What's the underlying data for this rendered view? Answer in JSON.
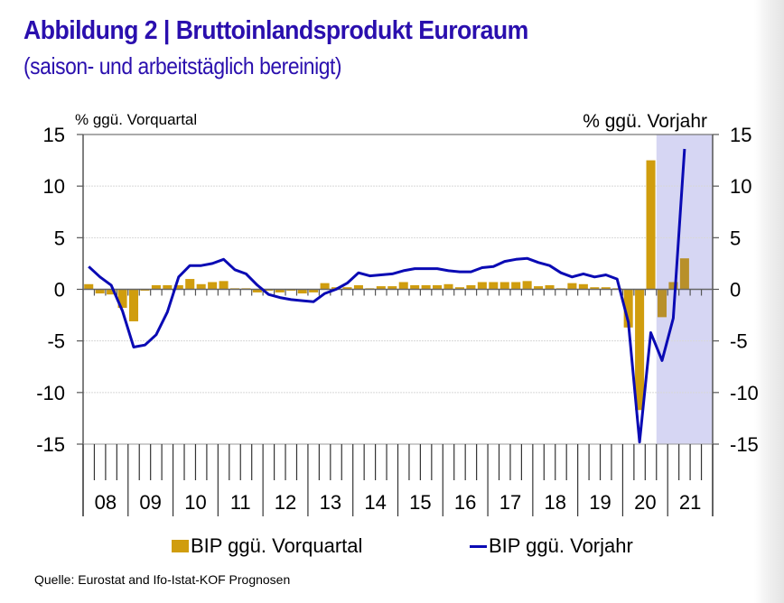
{
  "header": {
    "title": "Abbildung 2 | Bruttoinlandsprodukt Euroraum",
    "subtitle": "(saison- und arbeitstäglich bereinigt)"
  },
  "colors": {
    "title": "#2a0fae",
    "bars": "#d09d0e",
    "line": "#0a0ab4",
    "forecast_shade": "#d6d6f3"
  },
  "source": "Quelle: Eurostat and Ifo-Istat-KOF Prognosen",
  "chart_data": {
    "type": "bar+line",
    "title": "Bruttoinlandsprodukt Euroraum",
    "ylabel_left": "% ggü. Vorquartal",
    "ylabel_right": "% ggü. Vorjahr",
    "ylim_left": [
      -15,
      15
    ],
    "ylim_right": [
      -15,
      15
    ],
    "yticks": [
      15,
      10,
      5,
      0,
      -5,
      -10,
      -15
    ],
    "ytick_labels": [
      "15",
      "10",
      "5",
      "0",
      "-5",
      "-10",
      "-15"
    ],
    "grid": true,
    "x_years": [
      "08",
      "09",
      "10",
      "11",
      "12",
      "13",
      "14",
      "15",
      "16",
      "17",
      "18",
      "19",
      "20",
      "21"
    ],
    "x_quarters_per_year": 4,
    "forecast_start": "2020Q4",
    "legend": [
      "BIP ggü. Vorquartal",
      "BIP ggü. Vorjahr"
    ],
    "legend_position": "bottom",
    "series": [
      {
        "name": "BIP ggü. Vorquartal",
        "kind": "bar",
        "axis": "left",
        "values": [
          0.5,
          -0.4,
          -0.5,
          -1.8,
          -3.1,
          -0.1,
          0.4,
          0.4,
          0.4,
          1.0,
          0.5,
          0.7,
          0.8,
          0.1,
          0.1,
          -0.3,
          -0.1,
          -0.3,
          -0.1,
          -0.4,
          -0.3,
          0.6,
          0.2,
          0.2,
          0.4,
          0.1,
          0.3,
          0.3,
          0.7,
          0.4,
          0.4,
          0.4,
          0.5,
          0.2,
          0.4,
          0.7,
          0.7,
          0.7,
          0.7,
          0.8,
          0.3,
          0.4,
          0.1,
          0.6,
          0.5,
          0.2,
          0.2,
          0.1,
          -3.7,
          -11.7,
          12.5,
          -2.7,
          0.7,
          3.0,
          null,
          null
        ]
      },
      {
        "name": "BIP ggü. Vorjahr",
        "kind": "line",
        "axis": "right",
        "values": [
          2.2,
          1.2,
          0.4,
          -2.1,
          -5.6,
          -5.4,
          -4.4,
          -2.2,
          1.2,
          2.3,
          2.3,
          2.5,
          2.9,
          1.9,
          1.5,
          0.4,
          -0.5,
          -0.8,
          -1.0,
          -1.1,
          -1.2,
          -0.4,
          0.0,
          0.6,
          1.6,
          1.3,
          1.4,
          1.5,
          1.8,
          2.0,
          2.0,
          2.0,
          1.8,
          1.7,
          1.7,
          2.1,
          2.2,
          2.7,
          2.9,
          3.0,
          2.6,
          2.3,
          1.6,
          1.2,
          1.5,
          1.2,
          1.4,
          1.0,
          -3.2,
          -14.8,
          -4.2,
          -6.9,
          -2.8,
          13.6,
          null,
          null
        ]
      }
    ]
  }
}
